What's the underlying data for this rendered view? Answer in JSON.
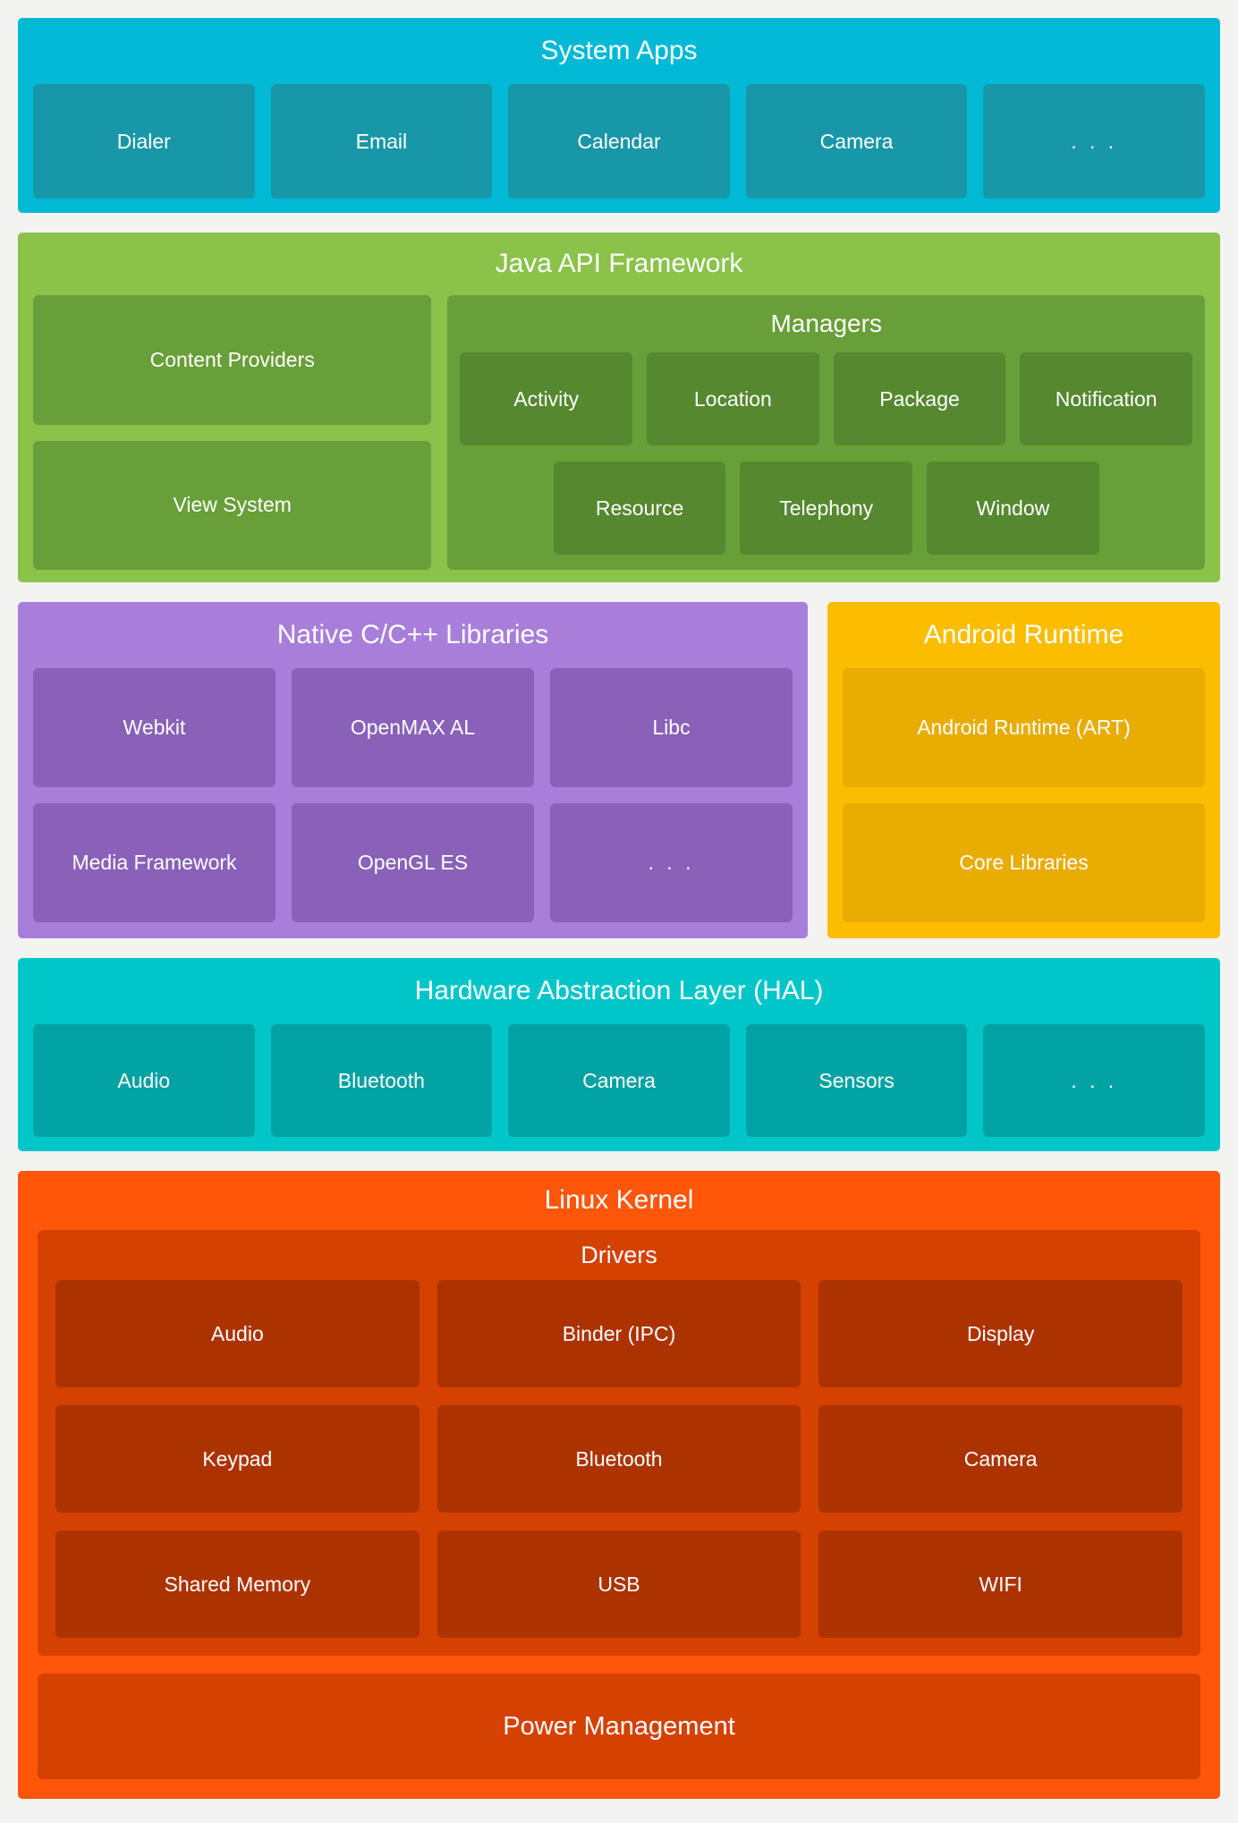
{
  "page": {
    "background": "#f3f3f1",
    "text_color": "#ffffff"
  },
  "colors": {
    "system_apps_bg": "#00b9d5",
    "system_apps_box": "#1797a8",
    "java_api_bg": "#8ac24a",
    "java_api_box": "#689f38",
    "java_api_chip": "#55882f",
    "native_libs_bg": "#a87edb",
    "native_libs_box": "#8961b8",
    "runtime_bg": "#fcbd00",
    "runtime_box": "#e9ac00",
    "hal_bg": "#00c6c9",
    "hal_box": "#00a2a4",
    "kernel_bg": "#ff560a",
    "kernel_group": "#d54100",
    "kernel_box": "#ac3300"
  },
  "system_apps": {
    "title": "System Apps",
    "items": [
      "Dialer",
      "Email",
      "Calendar",
      "Camera",
      ". . ."
    ]
  },
  "java_api": {
    "title": "Java API Framework",
    "left_items": [
      "Content Providers",
      "View System"
    ],
    "managers": {
      "title": "Managers",
      "row1": [
        "Activity",
        "Location",
        "Package",
        "Notification"
      ],
      "row2": [
        "Resource",
        "Telephony",
        "Window"
      ]
    }
  },
  "native_libs": {
    "title": "Native C/C++ Libraries",
    "rows": [
      [
        "Webkit",
        "OpenMAX AL",
        "Libc"
      ],
      [
        "Media Framework",
        "OpenGL ES",
        ". . ."
      ]
    ]
  },
  "runtime": {
    "title": "Android Runtime",
    "items": [
      "Android Runtime (ART)",
      "Core Libraries"
    ]
  },
  "hal": {
    "title": "Hardware Abstraction Layer (HAL)",
    "items": [
      "Audio",
      "Bluetooth",
      "Camera",
      "Sensors",
      ". . ."
    ]
  },
  "kernel": {
    "title": "Linux Kernel",
    "drivers": {
      "title": "Drivers",
      "rows": [
        [
          "Audio",
          "Binder (IPC)",
          "Display"
        ],
        [
          "Keypad",
          "Bluetooth",
          "Camera"
        ],
        [
          "Shared Memory",
          "USB",
          "WIFI"
        ]
      ]
    },
    "power": "Power Management"
  }
}
